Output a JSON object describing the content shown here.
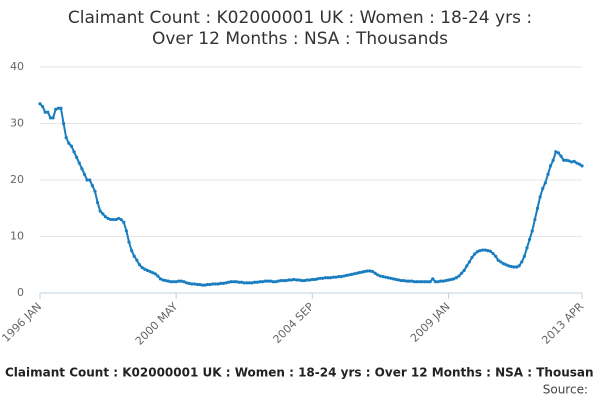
{
  "chart_data": {
    "type": "line",
    "title": [
      "Claimant Count : K02000001 UK : Women : 18-24 yrs :",
      "Over 12 Months : NSA : Thousands"
    ],
    "footer": "Claimant Count : K02000001 UK : Women : 18-24 yrs : Over 12 Months : NSA : Thousan",
    "source": "Source:",
    "categories": [
      "1996 JAN",
      null,
      null,
      null,
      null,
      null,
      null,
      null,
      null,
      null,
      null,
      null,
      null,
      null,
      null,
      null,
      null,
      null,
      null,
      null,
      null,
      null,
      null,
      null,
      null,
      null,
      null,
      null,
      null,
      null,
      null,
      null,
      null,
      null,
      null,
      null,
      null,
      null,
      null,
      null,
      null,
      null,
      null,
      null,
      null,
      null,
      null,
      null,
      null,
      null,
      null,
      null,
      "2000 MAY",
      null,
      null,
      null,
      null,
      null,
      null,
      null,
      null,
      null,
      null,
      null,
      null,
      null,
      null,
      null,
      null,
      null,
      null,
      null,
      null,
      null,
      null,
      null,
      null,
      null,
      null,
      null,
      null,
      null,
      null,
      null,
      null,
      null,
      null,
      null,
      null,
      null,
      null,
      null,
      null,
      null,
      null,
      null,
      null,
      null,
      null,
      null,
      null,
      null,
      null,
      null,
      "2004 SEP",
      null,
      null,
      null,
      null,
      null,
      null,
      null,
      null,
      null,
      null,
      null,
      null,
      null,
      null,
      null,
      null,
      null,
      null,
      null,
      null,
      null,
      null,
      null,
      null,
      null,
      null,
      null,
      null,
      null,
      null,
      null,
      null,
      null,
      null,
      null,
      null,
      null,
      null,
      null,
      null,
      null,
      null,
      null,
      null,
      null,
      null,
      null,
      null,
      null,
      null,
      null,
      "2009 JAN",
      null,
      null,
      null,
      null,
      null,
      null,
      null,
      null,
      null,
      null,
      null,
      null,
      null,
      null,
      null,
      null,
      null,
      null,
      null,
      null,
      null,
      null,
      null,
      null,
      null,
      null,
      null,
      null,
      null,
      null,
      null,
      null,
      null,
      null,
      null,
      null,
      null,
      null,
      null,
      null,
      null,
      null,
      null,
      null,
      null,
      null,
      null,
      null,
      null,
      null,
      "2013 APR"
    ],
    "series": [
      {
        "name": "Claimant Count",
        "color": "#1a7dc0",
        "values": [
          33.5,
          33,
          32,
          32,
          31,
          31,
          32.5,
          32.7,
          32.7,
          30,
          27.5,
          26.5,
          26,
          25,
          24,
          23,
          22,
          21,
          20,
          20,
          19,
          18,
          16,
          14.5,
          14,
          13.5,
          13.2,
          13,
          13,
          13,
          13.2,
          13,
          12.5,
          11,
          9,
          7.5,
          6.5,
          5.8,
          5,
          4.5,
          4.2,
          4,
          3.8,
          3.6,
          3.4,
          3,
          2.5,
          2.3,
          2.2,
          2.1,
          2,
          2,
          2,
          2.1,
          2.1,
          2,
          1.8,
          1.7,
          1.6,
          1.6,
          1.5,
          1.5,
          1.4,
          1.4,
          1.5,
          1.5,
          1.6,
          1.6,
          1.6,
          1.7,
          1.7,
          1.8,
          1.9,
          2,
          2,
          2,
          1.9,
          1.9,
          1.8,
          1.8,
          1.8,
          1.8,
          1.9,
          1.9,
          2,
          2,
          2.1,
          2.1,
          2.1,
          2,
          2,
          2.1,
          2.2,
          2.2,
          2.2,
          2.3,
          2.3,
          2.4,
          2.3,
          2.3,
          2.2,
          2.2,
          2.3,
          2.3,
          2.4,
          2.4,
          2.5,
          2.6,
          2.6,
          2.7,
          2.7,
          2.7,
          2.8,
          2.8,
          2.9,
          2.9,
          3,
          3.1,
          3.2,
          3.3,
          3.4,
          3.5,
          3.6,
          3.7,
          3.8,
          3.9,
          3.9,
          3.8,
          3.5,
          3.2,
          3,
          2.9,
          2.8,
          2.7,
          2.6,
          2.5,
          2.4,
          2.3,
          2.2,
          2.2,
          2.1,
          2.1,
          2.1,
          2,
          2,
          2,
          2,
          2,
          2,
          2,
          2.5,
          2,
          2,
          2.1,
          2.1,
          2.2,
          2.3,
          2.4,
          2.5,
          2.7,
          3,
          3.5,
          4,
          4.8,
          5.5,
          6.3,
          6.9,
          7.3,
          7.5,
          7.6,
          7.6,
          7.5,
          7.4,
          7,
          6.5,
          5.8,
          5.5,
          5.2,
          5,
          4.8,
          4.7,
          4.6,
          4.6,
          4.8,
          5.5,
          6.5,
          8,
          9.5,
          11,
          13,
          15,
          17,
          18.5,
          19.5,
          21,
          22.5,
          23.5,
          25,
          24.8,
          24.2,
          23.5,
          23.5,
          23.4,
          23.2,
          23.3,
          23,
          22.8,
          22.5
        ]
      }
    ],
    "ylim": [
      0,
      40
    ],
    "yticks": [
      0,
      10,
      20,
      30,
      40
    ],
    "grid": true
  }
}
